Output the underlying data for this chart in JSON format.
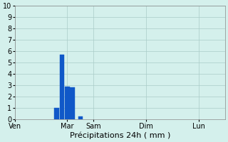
{
  "title": "",
  "xlabel": "Précipitations 24h ( mm )",
  "ylabel": "",
  "ylim": [
    0,
    10
  ],
  "yticks": [
    0,
    1,
    2,
    3,
    4,
    5,
    6,
    7,
    8,
    9,
    10
  ],
  "day_labels": [
    "Ven",
    "Mar",
    "Sam",
    "Dim",
    "Lun"
  ],
  "day_positions": [
    0,
    2,
    3,
    5,
    7
  ],
  "bar_centers": [
    1.6,
    1.8,
    2.0,
    2.2,
    2.5
  ],
  "bar_heights": [
    1.0,
    5.7,
    2.9,
    2.85,
    0.3
  ],
  "bar_color": "#1058c8",
  "bar_edge_color": "#1058c8",
  "background_color": "#d4f0ec",
  "grid_color": "#aaccc8",
  "tick_label_fontsize": 7,
  "xlabel_fontsize": 8,
  "total_days": 8,
  "bar_width": 0.18
}
